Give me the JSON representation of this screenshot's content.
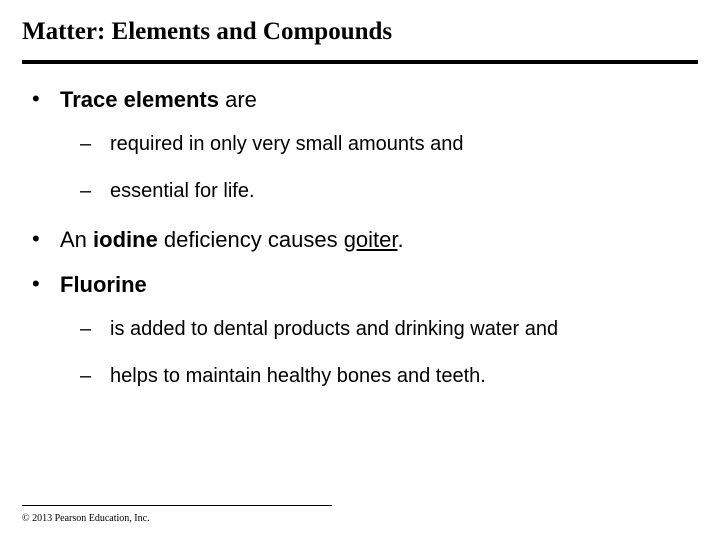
{
  "title": "Matter: Elements and Compounds",
  "bullets": [
    {
      "runs": [
        {
          "text": "Trace elements",
          "bold": true
        },
        {
          "text": " are"
        }
      ],
      "sub": [
        "required in only very small amounts and",
        "essential for life."
      ]
    },
    {
      "runs": [
        {
          "text": "An "
        },
        {
          "text": "iodine",
          "bold": true
        },
        {
          "text": " deficiency causes "
        },
        {
          "text": "goiter",
          "underline": true
        },
        {
          "text": "."
        }
      ],
      "sub": []
    },
    {
      "runs": [
        {
          "text": "Fluorine",
          "bold": true
        }
      ],
      "sub": [
        "is added to dental products and drinking water and",
        "helps to maintain healthy bones and teeth."
      ]
    }
  ],
  "copyright": "© 2013 Pearson Education, Inc.",
  "marks": {
    "bullet": "•",
    "dash": "–"
  },
  "colors": {
    "background": "#ffffff",
    "text": "#000000",
    "rule": "#000000"
  },
  "fontsizes": {
    "title": 25,
    "bullet": 22,
    "sub": 20,
    "copyright": 10
  }
}
